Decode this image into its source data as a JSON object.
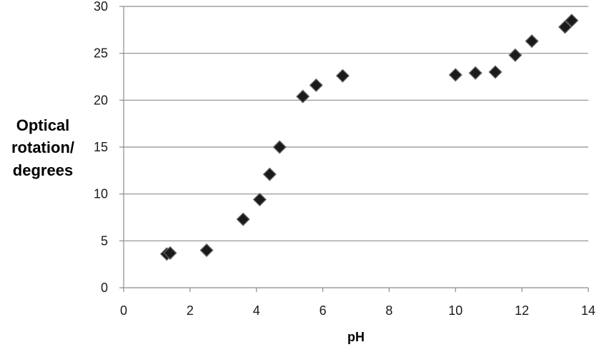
{
  "chart_data": {
    "type": "scatter",
    "title": "",
    "xlabel": "pH",
    "ylabel_lines": [
      "Optical",
      "rotation/",
      "degrees"
    ],
    "xlim": [
      0,
      14
    ],
    "ylim": [
      0,
      30
    ],
    "x_ticks": [
      0,
      2,
      4,
      6,
      8,
      10,
      12,
      14
    ],
    "y_ticks": [
      0,
      5,
      10,
      15,
      20,
      25,
      30
    ],
    "grid": "horizontal",
    "marker": "diamond",
    "marker_color": "#1a1a1a",
    "series": [
      {
        "points": [
          {
            "x": 1.3,
            "y": 3.6
          },
          {
            "x": 1.4,
            "y": 3.7
          },
          {
            "x": 2.5,
            "y": 4.0
          },
          {
            "x": 3.6,
            "y": 7.3
          },
          {
            "x": 4.1,
            "y": 9.4
          },
          {
            "x": 4.4,
            "y": 12.1
          },
          {
            "x": 4.7,
            "y": 15.0
          },
          {
            "x": 5.4,
            "y": 20.4
          },
          {
            "x": 5.8,
            "y": 21.6
          },
          {
            "x": 6.6,
            "y": 22.6
          },
          {
            "x": 10.0,
            "y": 22.7
          },
          {
            "x": 10.6,
            "y": 22.9
          },
          {
            "x": 11.2,
            "y": 23.0
          },
          {
            "x": 11.8,
            "y": 24.8
          },
          {
            "x": 12.3,
            "y": 26.3
          },
          {
            "x": 13.3,
            "y": 27.8
          },
          {
            "x": 13.5,
            "y": 28.5
          }
        ]
      }
    ]
  }
}
